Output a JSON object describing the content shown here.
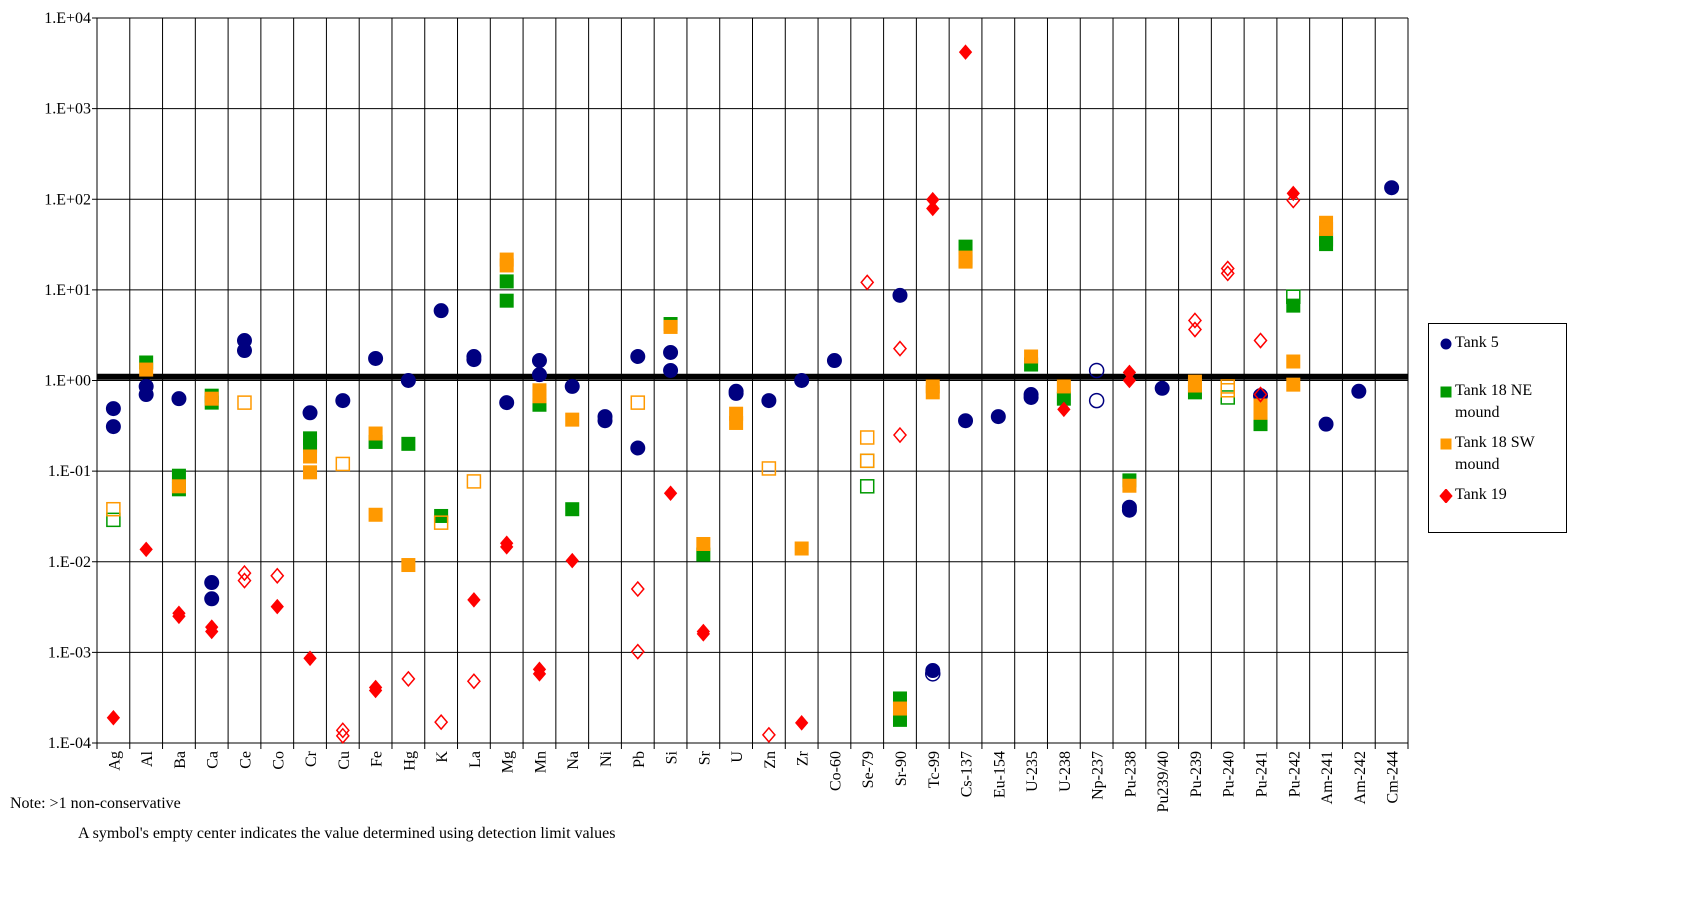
{
  "chart_data": {
    "type": "scatter",
    "categories": [
      "Ag",
      "Al",
      "Ba",
      "Ca",
      "Ce",
      "Co",
      "Cr",
      "Cu",
      "Fe",
      "Hg",
      "K",
      "La",
      "Mg",
      "Mn",
      "Na",
      "Ni",
      "Pb",
      "Si",
      "Sr",
      "U",
      "Zn",
      "Zr",
      "Co-60",
      "Se-79",
      "Sr-90",
      "Tc-99",
      "Cs-137",
      "Eu-154",
      "U-235",
      "U-238",
      "Np-237",
      "Pu-238",
      "Pu239/40",
      "Pu-239",
      "Pu-240",
      "Pu-241",
      "Pu-242",
      "Am-241",
      "Am-242",
      "Cm-244"
    ],
    "log_scale": true,
    "ylim": [
      0.0001,
      10000
    ],
    "yticks": [
      {
        "value": 0.0001,
        "label": "1.E-04"
      },
      {
        "value": 0.001,
        "label": "1.E-03"
      },
      {
        "value": 0.01,
        "label": "1.E-02"
      },
      {
        "value": 0.1,
        "label": "1.E-01"
      },
      {
        "value": 1,
        "label": "1.E+00"
      },
      {
        "value": 10,
        "label": "1.E+01"
      },
      {
        "value": 100,
        "label": "1.E+02"
      },
      {
        "value": 1000,
        "label": "1.E+03"
      },
      {
        "value": 10000,
        "label": "1.E+04"
      }
    ],
    "grid": true,
    "reference_line": 1.1,
    "legend_position": "right",
    "series": [
      {
        "name": "Tank 5",
        "color": "#000080",
        "marker": "circle",
        "values": [
          [
            0.49,
            0.31
          ],
          [
            0.86,
            0.7
          ],
          [
            0.63
          ],
          [
            0.0059,
            0.0039
          ],
          [
            2.76,
            2.14
          ],
          [],
          [
            0.44
          ],
          [
            0.6
          ],
          [
            1.75
          ],
          [
            1.0
          ],
          [
            5.9
          ],
          [
            1.84,
            1.7
          ],
          [
            0.57
          ],
          [
            1.66,
            1.16
          ],
          [
            0.86
          ],
          [
            0.4,
            0.36
          ],
          [
            1.84,
            0.18
          ],
          [
            2.04,
            1.29
          ],
          [],
          [
            0.76,
            0.72
          ],
          [
            0.6
          ],
          [
            1.0
          ],
          [
            1.66
          ],
          [],
          [
            8.7
          ],
          [
            0.00063
          ],
          [
            0.36
          ],
          [
            0.4
          ],
          [
            0.7,
            0.65
          ],
          [],
          [],
          [
            0.04,
            0.037
          ],
          [
            0.82
          ],
          [],
          [],
          [
            0.68
          ],
          [],
          [
            0.33
          ],
          [
            0.76
          ],
          [
            134
          ]
        ],
        "detection_limit_values": [
          [],
          [],
          [],
          [],
          [],
          [],
          [],
          [],
          [],
          [],
          [],
          [],
          [],
          [],
          [],
          [],
          [],
          [],
          [],
          [],
          [],
          [],
          [],
          [],
          [],
          [
            0.00058
          ],
          [],
          [],
          [],
          [],
          [
            1.29,
            0.6
          ],
          [],
          [],
          [],
          [],
          [],
          [],
          [],
          [],
          []
        ]
      },
      {
        "name": "Tank 18 NE mound",
        "color": "#009900",
        "marker": "square",
        "values": [
          [],
          [
            1.58
          ],
          [
            0.089,
            0.063
          ],
          [
            0.68,
            0.57
          ],
          [],
          [],
          [
            0.23,
            0.19
          ],
          [],
          [
            0.21
          ],
          [
            0.2
          ],
          [
            0.032
          ],
          [],
          [
            12.4,
            7.6
          ],
          [
            0.54
          ],
          [
            0.038
          ],
          [],
          [],
          [
            4.2
          ],
          [
            0.012
          ],
          [],
          [],
          [],
          [],
          [],
          [
            0.00031,
            0.00018
          ],
          [],
          [
            30,
            21
          ],
          [],
          [
            1.5
          ],
          [
            0.63
          ],
          [],
          [
            0.079
          ],
          [],
          [
            0.74
          ],
          [],
          [
            0.37,
            0.33
          ],
          [
            6.7
          ],
          [
            36,
            32
          ],
          [],
          []
        ],
        "detection_limit_values": [
          [
            0.029
          ],
          [],
          [],
          [],
          [],
          [],
          [],
          [],
          [],
          [],
          [],
          [],
          [],
          [],
          [],
          [],
          [],
          [],
          [],
          [],
          [],
          [],
          [],
          [
            0.13,
            0.068
          ],
          [],
          [],
          [],
          [],
          [],
          [],
          [],
          [],
          [],
          [],
          [
            0.65
          ],
          [],
          [
            8.4
          ],
          [],
          [],
          []
        ]
      },
      {
        "name": "Tank 18 SW mound",
        "color": "#ff9900",
        "marker": "square",
        "values": [
          [],
          [
            1.32
          ],
          [
            0.068
          ],
          [
            0.63
          ],
          [],
          [],
          [
            0.145,
            0.097
          ],
          [],
          [
            0.26,
            0.033
          ],
          [
            0.0092
          ],
          [],
          [],
          [
            21.6,
            18.6
          ],
          [
            0.78,
            0.67
          ],
          [
            0.37
          ],
          [],
          [],
          [
            3.9
          ],
          [
            0.0157
          ],
          [
            0.43,
            0.34
          ],
          [],
          [
            0.014
          ],
          [],
          [],
          [
            0.00024
          ],
          [
            0.86,
            0.74
          ],
          [
            22.7,
            20.5
          ],
          [],
          [
            1.84
          ],
          [
            0.86
          ],
          [],
          [
            0.069
          ],
          [],
          [
            0.97,
            0.88
          ],
          [],
          [
            0.53,
            0.44
          ],
          [
            1.62,
            0.9
          ],
          [
            55,
            47
          ],
          [],
          []
        ],
        "detection_limit_values": [
          [
            0.038
          ],
          [],
          [],
          [],
          [
            0.57
          ],
          [],
          [],
          [
            0.12
          ],
          [],
          [],
          [
            0.027
          ],
          [
            0.077
          ],
          [],
          [],
          [],
          [],
          [
            0.57
          ],
          [],
          [],
          [],
          [
            0.107
          ],
          [],
          [],
          [
            0.235,
            0.13
          ],
          [],
          [],
          [],
          [],
          [],
          [],
          [],
          [],
          [],
          [],
          [
            0.86,
            0.78
          ],
          [],
          [],
          [],
          [],
          []
        ]
      },
      {
        "name": "Tank 19",
        "color": "#ff0000",
        "marker": "diamond",
        "values": [
          [
            0.00019
          ],
          [
            0.0137
          ],
          [
            0.0027,
            0.0025
          ],
          [
            0.0019,
            0.0017
          ],
          [],
          [
            0.0032
          ],
          [
            0.00086
          ],
          [],
          [
            0.00041,
            0.00038
          ],
          [],
          [],
          [
            0.0038
          ],
          [
            0.016,
            0.0146
          ],
          [
            0.00065,
            0.00058
          ],
          [
            0.0103
          ],
          [],
          [],
          [
            0.057
          ],
          [
            0.0017,
            0.0016
          ],
          [],
          [],
          [
            0.000167
          ],
          [],
          [],
          [],
          [
            99,
            79
          ],
          [
            4200
          ],
          [],
          [],
          [
            0.48
          ],
          [],
          [
            1.23,
            1.0
          ],
          [],
          [],
          [],
          [],
          [
            116
          ],
          [],
          [],
          []
        ],
        "detection_limit_values": [
          [],
          [],
          [],
          [],
          [
            0.0075,
            0.0062
          ],
          [
            0.007
          ],
          [],
          [
            0.000138,
            0.00012
          ],
          [],
          [
            0.00051
          ],
          [
            0.00017
          ],
          [
            0.00048
          ],
          [],
          [],
          [],
          [],
          [
            0.005,
            0.00102
          ],
          [],
          [],
          [],
          [
            0.000123
          ],
          [],
          [],
          [
            12.1
          ],
          [
            2.25,
            0.25
          ],
          [],
          [],
          [],
          [],
          [],
          [],
          [],
          [],
          [
            4.6,
            3.65
          ],
          [
            17.2,
            15.2
          ],
          [
            2.76,
            0.7
          ],
          [
            97
          ],
          [],
          [],
          []
        ]
      }
    ],
    "notes": [
      "Note: >1 non-conservative",
      "A symbol's empty center indicates the value determined using detection limit values"
    ]
  }
}
